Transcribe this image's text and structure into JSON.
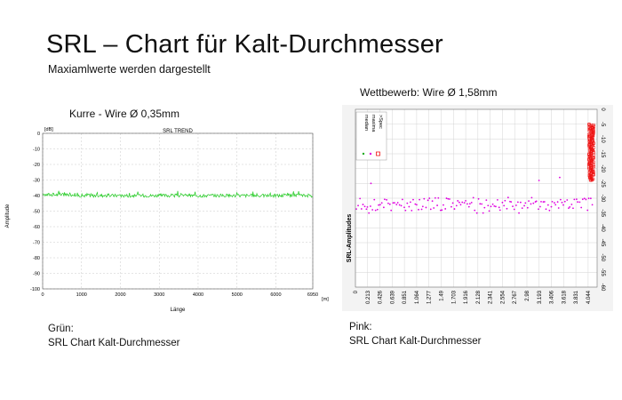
{
  "slide": {
    "title": "SRL – Chart für Kalt-Durchmesser",
    "subtitle": "Maxiamlwerte werden dargestellt",
    "left_heading": "Kurre - Wire Ø 0,35mm",
    "right_heading": "Wettbewerb: Wire Ø 1,58mm",
    "left_caption": {
      "line1": "Grün:",
      "line2": "SRL Chart Kalt-Durchmesser"
    },
    "right_caption": {
      "line1": "Pink:",
      "line2": "SRL Chart Kalt-Durchmesser"
    }
  },
  "colors": {
    "green": "#22cc22",
    "magenta": "#e000e0",
    "red": "#ee1111",
    "grid": "#c8c8c8",
    "panel": "#f3f3f3"
  },
  "chart_data": [
    {
      "type": "line",
      "title": "SRL TREND",
      "xlabel": "Länge",
      "ylabel": "Amplitude",
      "x_unit": "[m]",
      "y_unit": "[dB]",
      "xlim": [
        0,
        6950
      ],
      "ylim": [
        -100,
        0
      ],
      "x_ticks": [
        "0",
        "1000",
        "2000",
        "3000",
        "4000",
        "5000",
        "6000",
        "6950"
      ],
      "y_ticks": [
        "0",
        "-10",
        "-20",
        "-30",
        "-40",
        "-50",
        "-60",
        "-70",
        "-80",
        "-90",
        "-100"
      ],
      "grid": true,
      "series": [
        {
          "color": "#22cc22",
          "level": -40,
          "range": [
            -42,
            -37
          ]
        }
      ]
    },
    {
      "type": "scatter",
      "ylabel": "SRL-Amplitudes",
      "ylim": [
        -60,
        0
      ],
      "y_ticks": [
        "0",
        "-5",
        "-10",
        "-15",
        "-20",
        "-25",
        "-30",
        "-35",
        "-40",
        "-45",
        "-50",
        "-55",
        "-60"
      ],
      "x_ticks": [
        "0",
        "0.213",
        "0.426",
        "0.639",
        "0.851",
        "1.064",
        "1.277",
        "1.49",
        "1.703",
        "1.916",
        "2.128",
        "2.341",
        "2.554",
        "2.767",
        "2.98",
        "3.193",
        "3.406",
        "3.618",
        "3.831",
        "4.044"
      ],
      "xlim": [
        0,
        4.2
      ],
      "grid": true,
      "legend": {
        "position": "top-left",
        "entries": [
          "median",
          "maxima",
          ">Spec"
        ]
      },
      "series": [
        {
          "color": "#e000e0",
          "level": -32,
          "range": [
            -35,
            -29
          ],
          "outliers": [
            {
              "x": 0.27,
              "y": -25
            },
            {
              "x": 3.19,
              "y": -24
            },
            {
              "x": 3.55,
              "y": -23
            }
          ]
        },
        {
          "color": "#ee1111",
          "x": 4.1,
          "range": [
            -24,
            -5
          ]
        }
      ]
    }
  ]
}
